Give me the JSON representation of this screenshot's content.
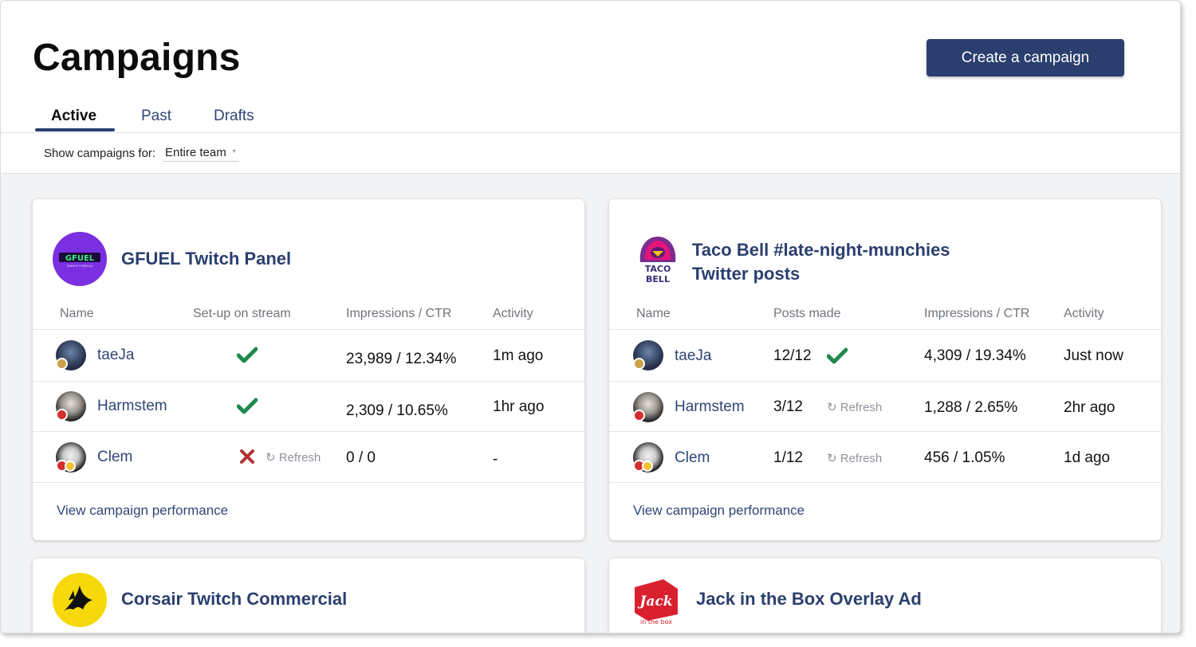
{
  "page": {
    "title": "Campaigns",
    "create_button": "Create a campaign",
    "tabs": [
      {
        "label": "Active",
        "active": true
      },
      {
        "label": "Past",
        "active": false
      },
      {
        "label": "Drafts",
        "active": false
      }
    ],
    "filter": {
      "label": "Show campaigns for:",
      "value": "Entire team"
    }
  },
  "campaigns": [
    {
      "title": "GFUEL Twitch Panel",
      "logo": "gfuel-logo",
      "columns": [
        "Name",
        "Set-up on stream",
        "Impressions / CTR",
        "Activity"
      ],
      "rows": [
        {
          "name": "taeJa",
          "status": "check-icon",
          "refresh": "",
          "metric": "23,989 / 12.34%",
          "activity": "1m ago"
        },
        {
          "name": "Harmstem",
          "status": "check-icon",
          "refresh": "",
          "metric": "2,309 / 10.65%",
          "activity": "1hr ago"
        },
        {
          "name": "Clem",
          "status": "x-icon",
          "refresh": "Refresh",
          "metric": "0 / 0",
          "activity": "-"
        }
      ],
      "link": "View campaign performance"
    },
    {
      "title_line1": "Taco Bell #late-night-munchies",
      "title_line2": "Twitter posts",
      "logo": "taco-bell-logo",
      "columns": [
        "Name",
        "Posts made",
        "Impressions / CTR",
        "Activity"
      ],
      "rows": [
        {
          "name": "taeJa",
          "posts": "12/12",
          "status": "check-icon",
          "refresh": "",
          "metric": "4,309 / 19.34%",
          "activity": "Just now"
        },
        {
          "name": "Harmstem",
          "posts": "3/12",
          "status": "",
          "refresh": "Refresh",
          "metric": "1,288 / 2.65%",
          "activity": "2hr ago"
        },
        {
          "name": "Clem",
          "posts": "1/12",
          "status": "",
          "refresh": "Refresh",
          "metric": "456 / 1.05%",
          "activity": "1d ago"
        }
      ],
      "link": "View campaign performance"
    },
    {
      "title": "Corsair Twitch Commercial",
      "logo": "corsair-logo"
    },
    {
      "title": "Jack in the Box Overlay Ad",
      "logo": "jack-in-the-box-logo",
      "logo_text": "Jack",
      "logo_subtext": "in the box"
    }
  ],
  "colors": {
    "primary": "#2b3f6e",
    "link": "#2f4676",
    "success": "#1f8a4c",
    "error": "#b03030",
    "muted": "#8f949b",
    "gfuel_purple": "#7a2fe0",
    "corsair_yellow": "#f5d90a",
    "jack_red": "#d8202f"
  }
}
